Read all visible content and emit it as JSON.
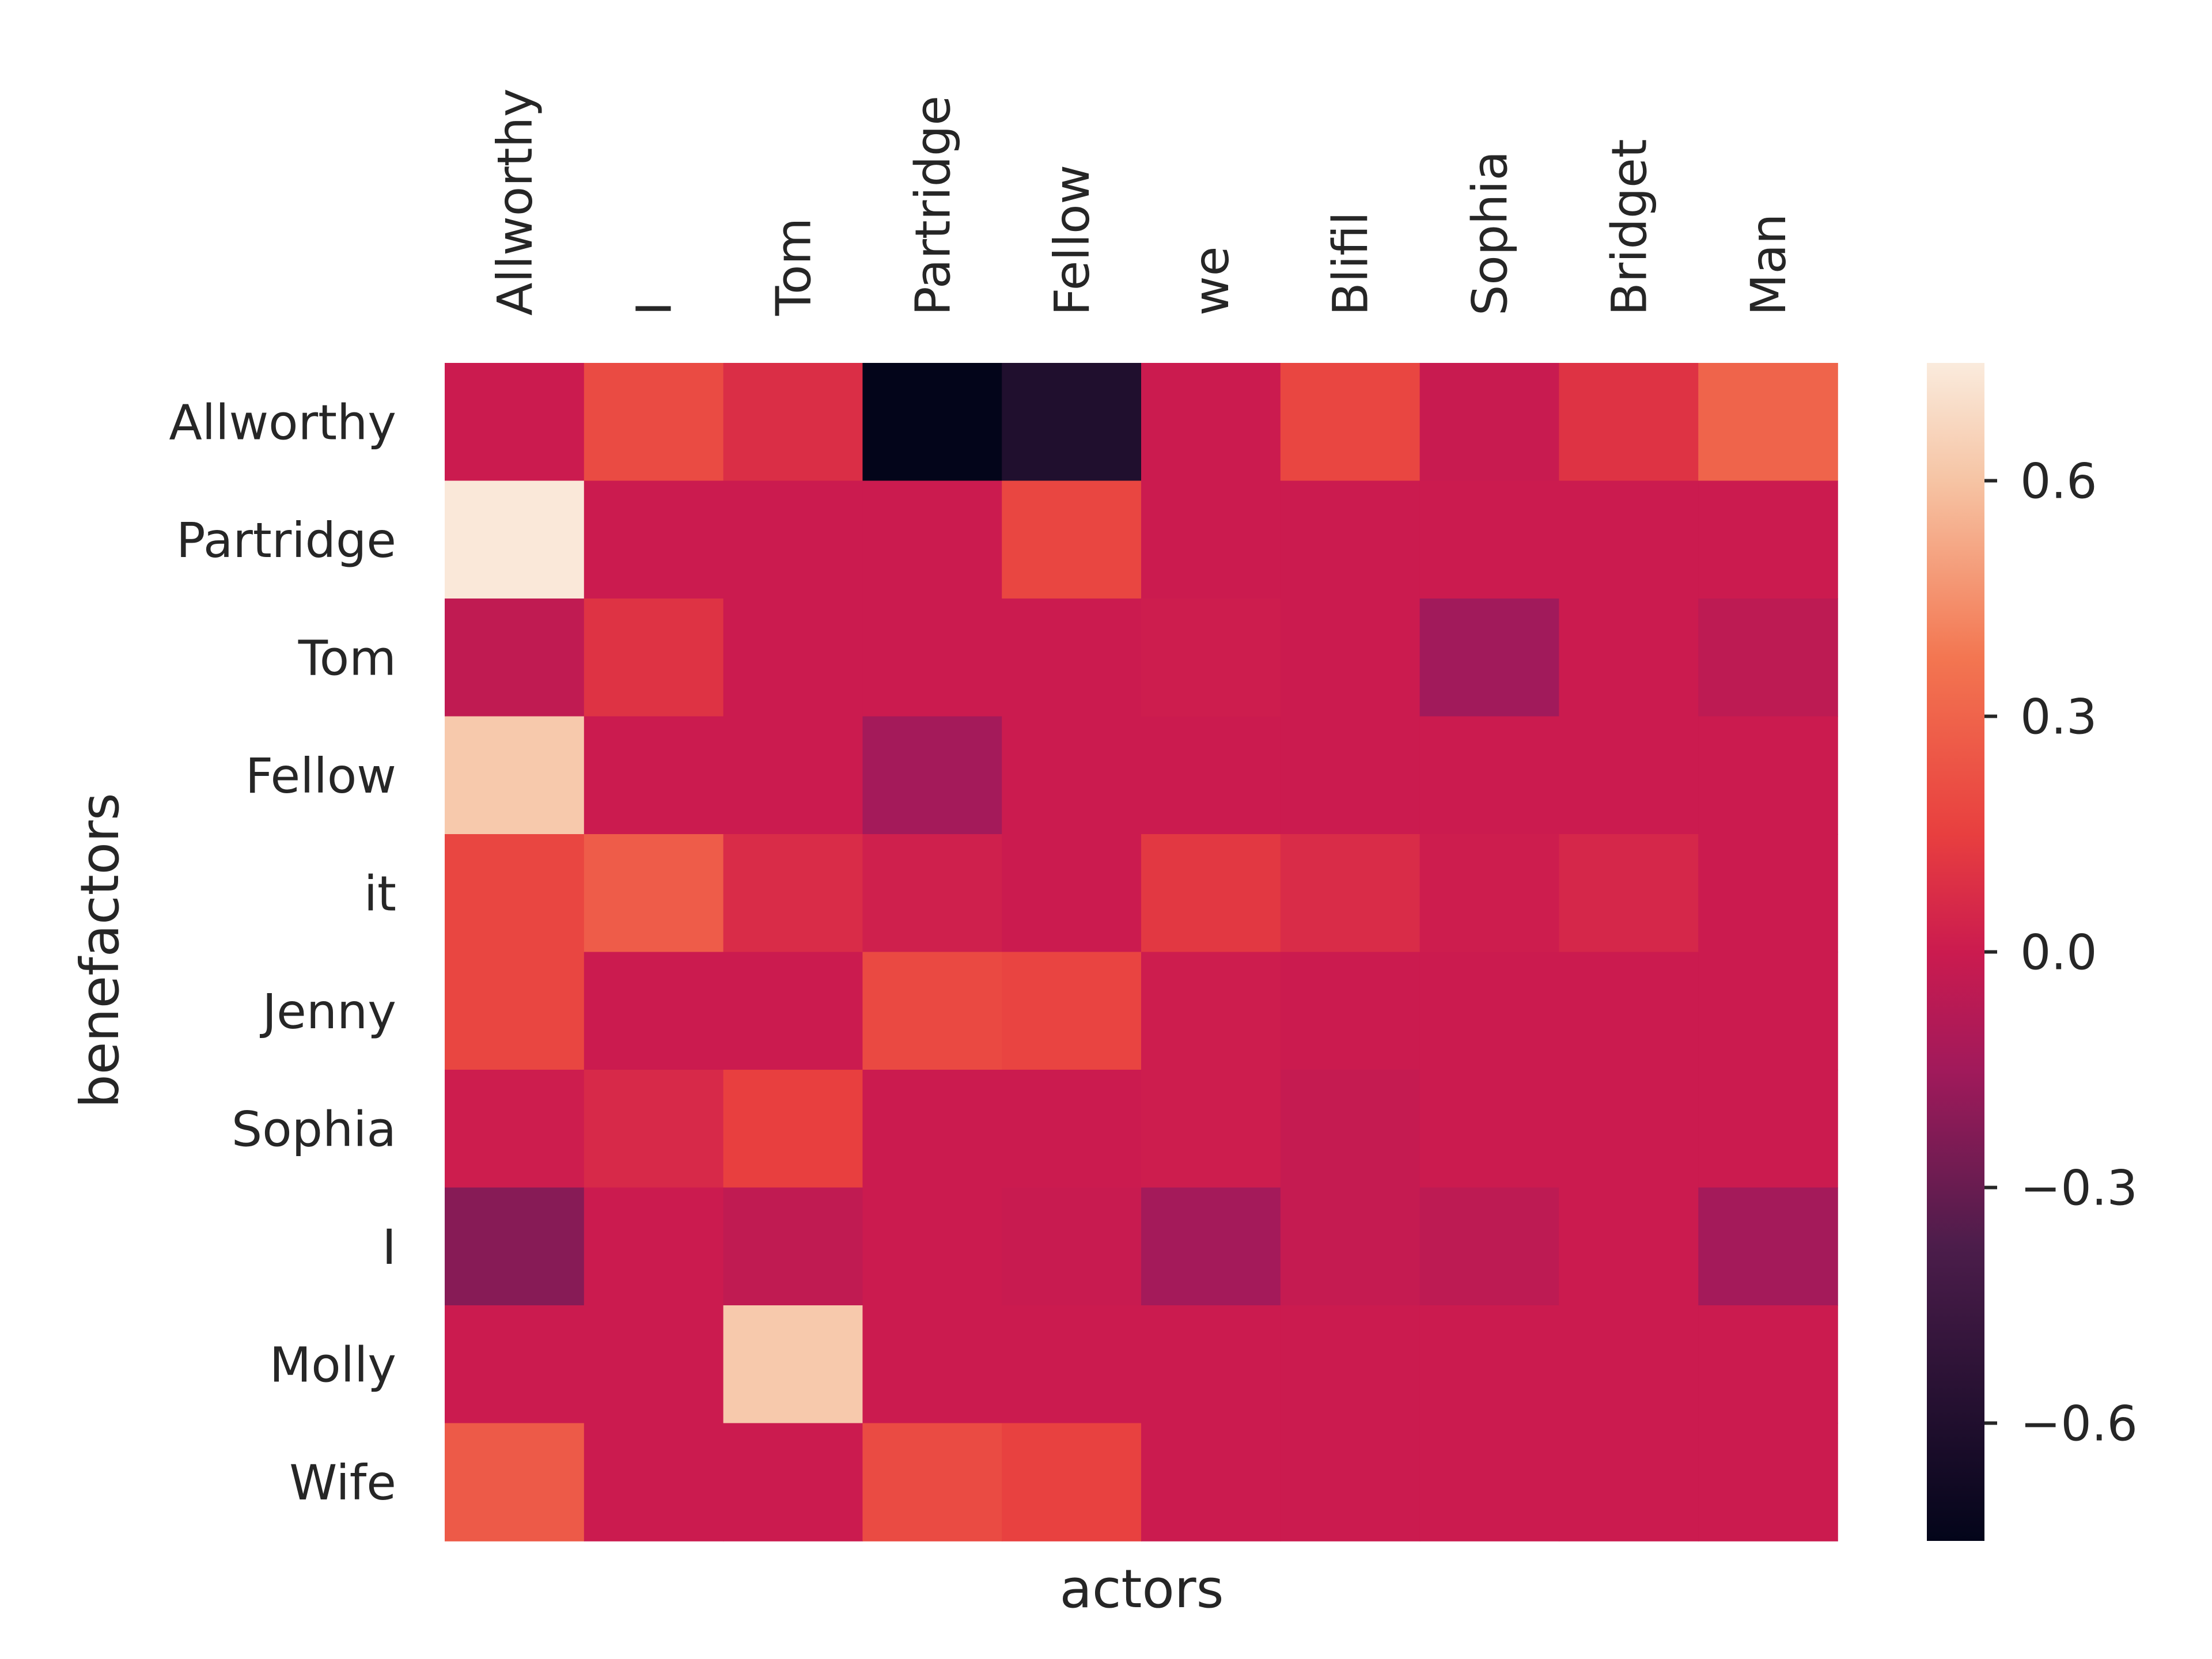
{
  "chart_data": {
    "type": "heatmap",
    "xlabel": "actors",
    "ylabel": "benefactors",
    "x_categories": [
      "Allworthy",
      "I",
      "Tom",
      "Partridge",
      "Fellow",
      "we",
      "Blifil",
      "Sophia",
      "Bridget",
      "Man"
    ],
    "y_categories": [
      "Allworthy",
      "Partridge",
      "Tom",
      "Fellow",
      "it",
      "Jenny",
      "Sophia",
      "I",
      "Molly",
      "Wife"
    ],
    "values": [
      [
        0.0,
        0.2,
        0.08,
        -0.75,
        -0.6,
        0.0,
        0.18,
        -0.01,
        0.1,
        0.3
      ],
      [
        0.74,
        0.0,
        0.0,
        0.0,
        0.18,
        0.0,
        0.0,
        0.0,
        0.0,
        0.0
      ],
      [
        -0.04,
        0.1,
        0.0,
        0.0,
        0.0,
        0.01,
        0.0,
        -0.15,
        0.0,
        -0.05
      ],
      [
        0.62,
        0.0,
        0.0,
        -0.14,
        0.0,
        0.0,
        0.0,
        0.0,
        0.0,
        0.0
      ],
      [
        0.18,
        0.27,
        0.07,
        0.02,
        0.0,
        0.12,
        0.07,
        0.01,
        0.05,
        0.0
      ],
      [
        0.18,
        0.0,
        0.0,
        0.19,
        0.17,
        0.01,
        0.0,
        0.0,
        0.0,
        0.0
      ],
      [
        0.01,
        0.06,
        0.15,
        0.0,
        0.0,
        0.01,
        -0.02,
        0.0,
        0.0,
        0.0
      ],
      [
        -0.22,
        0.0,
        -0.04,
        0.0,
        -0.01,
        -0.14,
        -0.02,
        -0.05,
        0.0,
        -0.14
      ],
      [
        0.0,
        0.0,
        0.62,
        0.0,
        0.0,
        0.0,
        0.0,
        0.0,
        0.0,
        0.0
      ],
      [
        0.26,
        0.0,
        0.0,
        0.2,
        0.16,
        0.0,
        0.0,
        0.0,
        0.0,
        0.0
      ]
    ],
    "colormap": "rocket",
    "vmin": -0.75,
    "vmax": 0.75,
    "colorbar_ticks": [
      0.6,
      0.3,
      0.0,
      -0.3,
      -0.6
    ],
    "colorbar_tick_labels": [
      "0.6",
      "0.3",
      "0.0",
      "−0.3",
      "−0.6"
    ],
    "x_tick_rotation": "vertical",
    "x_ticks_position": "top"
  }
}
